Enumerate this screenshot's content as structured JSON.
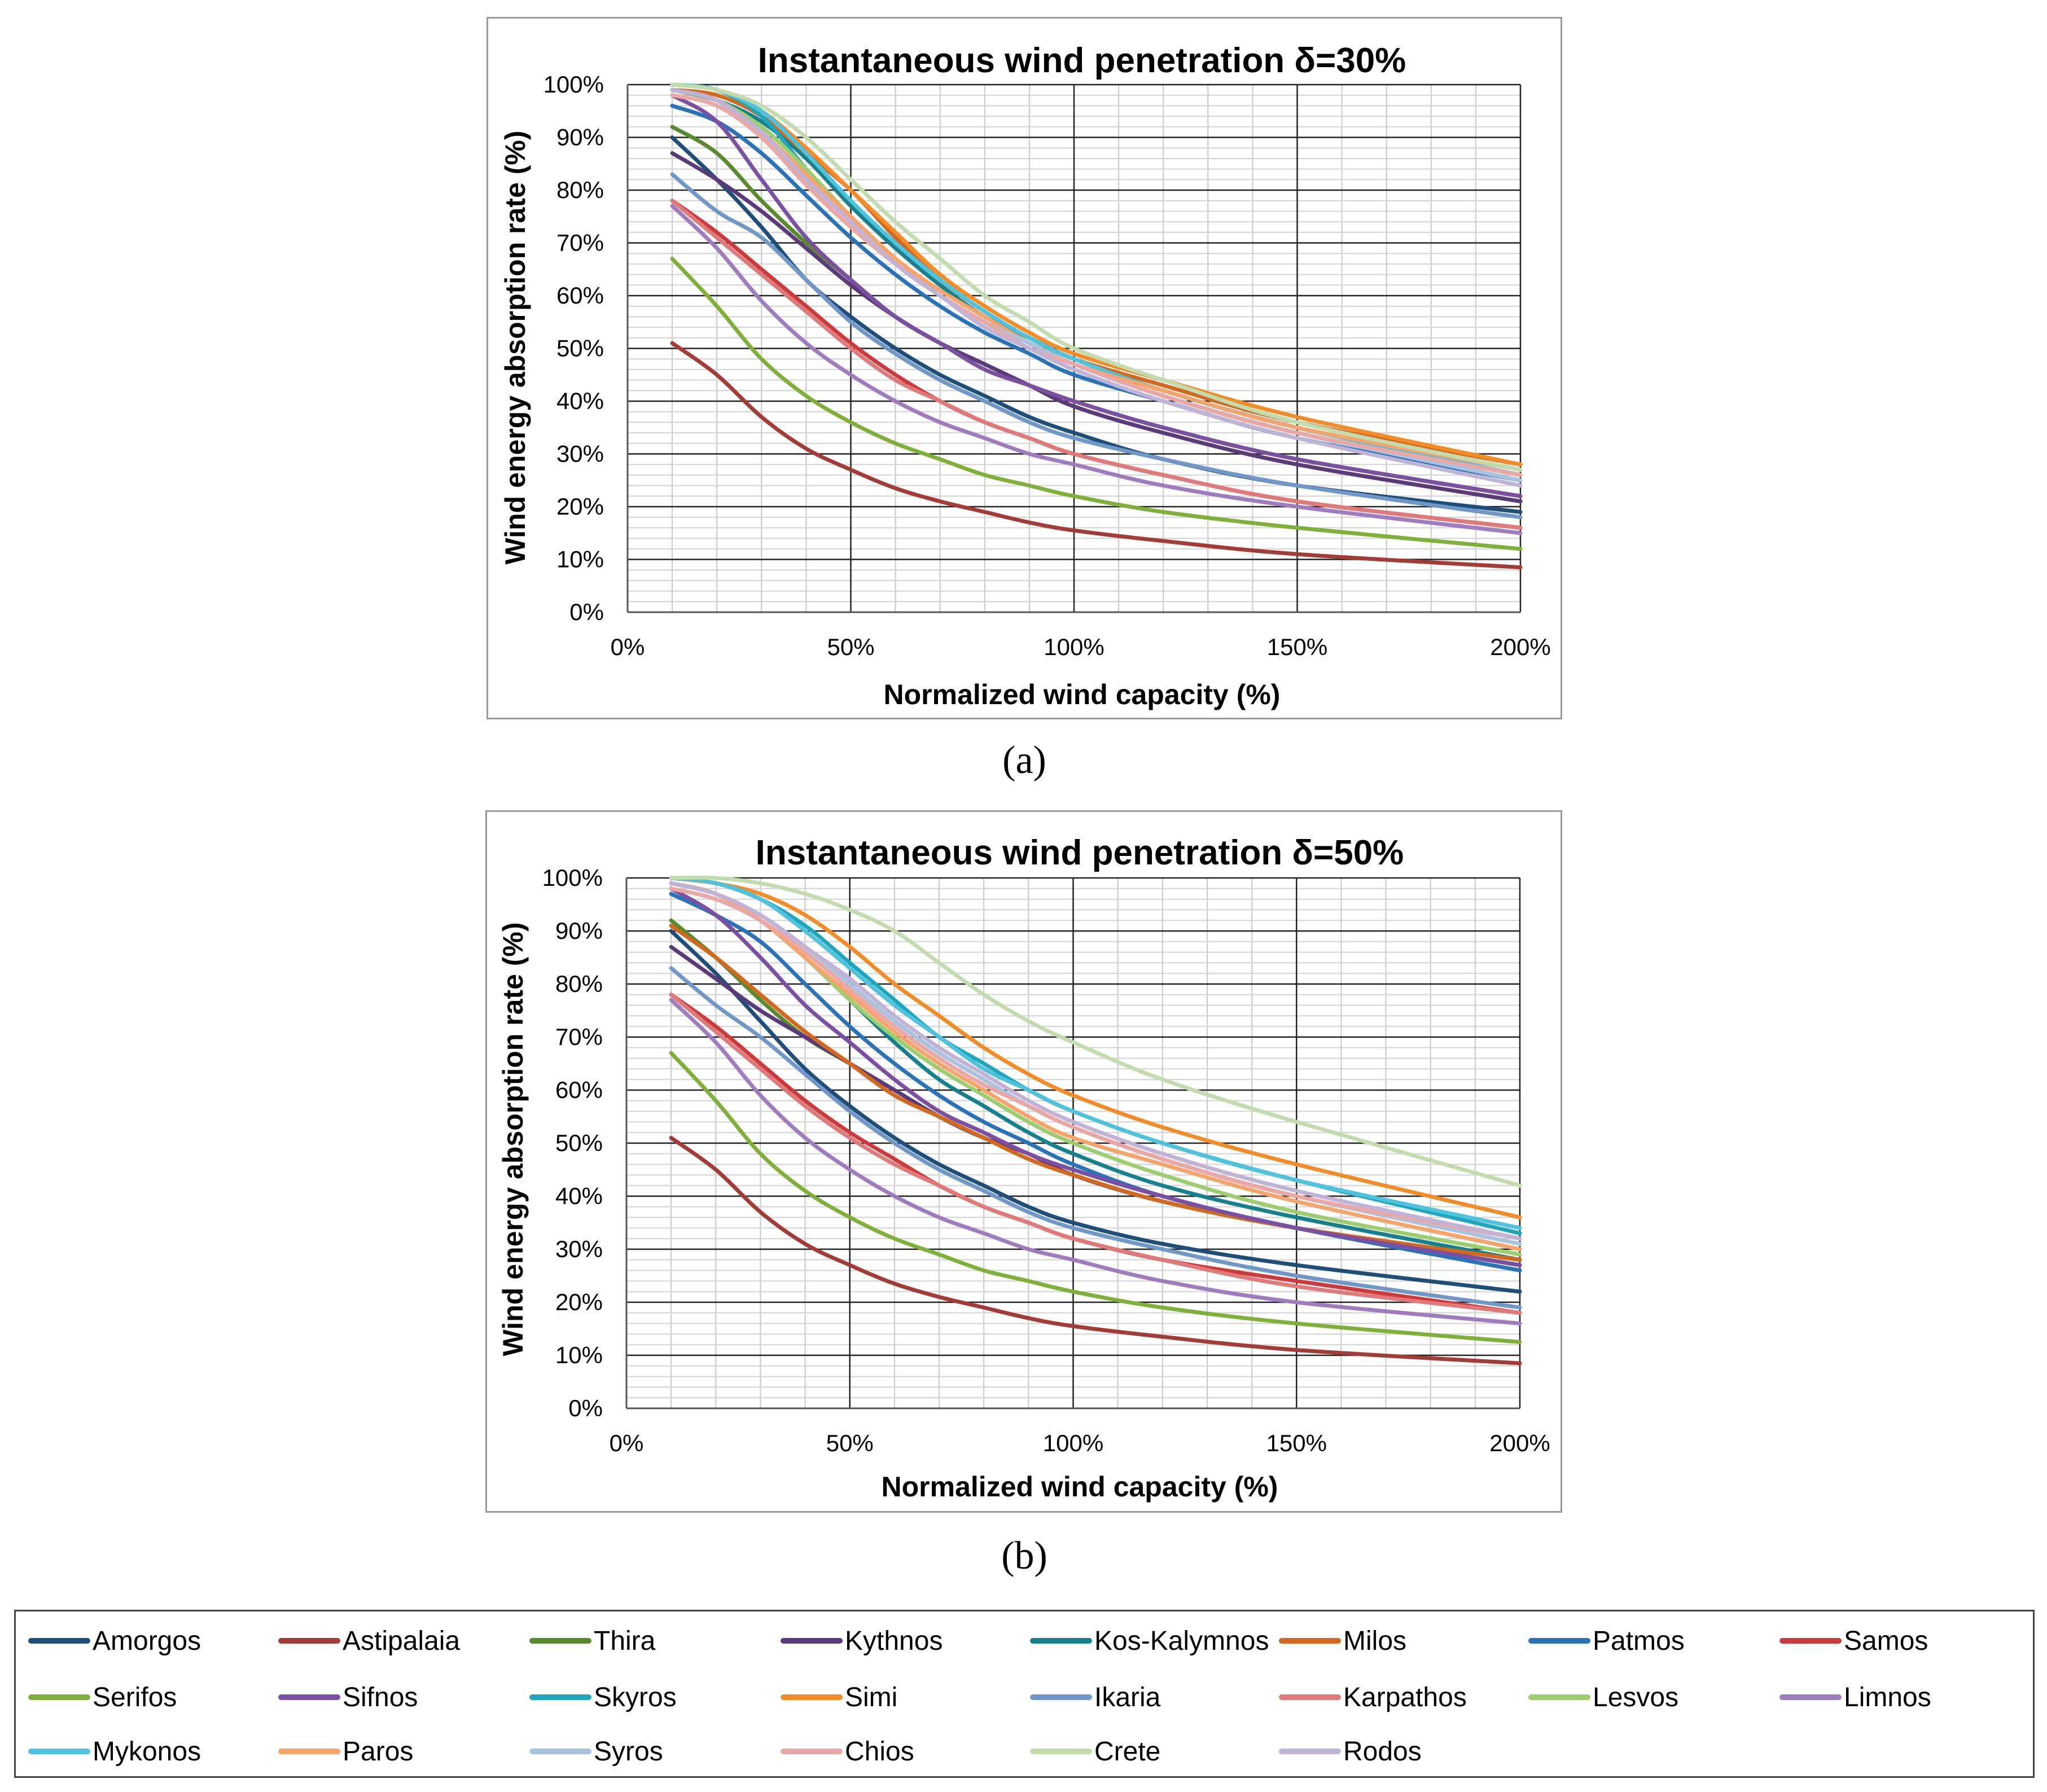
{
  "captions": {
    "a": "(a)",
    "b": "(b)"
  },
  "chart_data": [
    {
      "type": "line",
      "panel": "a",
      "title": "Instantaneous wind penetration δ=30%",
      "xlabel": "Normalized wind capacity (%)",
      "ylabel": "Wind energy absorption rate (%)",
      "xlim": [
        0,
        200
      ],
      "ylim": [
        0,
        100
      ],
      "x_ticks": [
        "0%",
        "50%",
        "100%",
        "150%",
        "200%"
      ],
      "y_ticks": [
        "0%",
        "10%",
        "20%",
        "30%",
        "40%",
        "50%",
        "60%",
        "70%",
        "80%",
        "90%",
        "100%"
      ],
      "x": [
        10,
        20,
        30,
        40,
        50,
        60,
        70,
        80,
        90,
        100,
        120,
        150,
        200
      ],
      "series": [
        {
          "name": "Amorgos",
          "color": "#1f4e79",
          "values": [
            90,
            82,
            73,
            63,
            56,
            50,
            45,
            41,
            37,
            34,
            29,
            24,
            19
          ]
        },
        {
          "name": "Astipalaia",
          "color": "#a33b37",
          "values": [
            51,
            45,
            37,
            31,
            27,
            23.5,
            21,
            19,
            17,
            15.5,
            13.5,
            11,
            8.5
          ]
        },
        {
          "name": "Thira",
          "color": "#5a8a2e",
          "values": [
            92,
            87,
            78,
            70,
            63,
            56,
            51,
            47,
            43,
            40,
            35,
            29,
            22
          ]
        },
        {
          "name": "Kythnos",
          "color": "#5b3a7a",
          "values": [
            87,
            82,
            76,
            69,
            62,
            56,
            51,
            47,
            43,
            39,
            34,
            28,
            21
          ]
        },
        {
          "name": "Kos-Kalymnos",
          "color": "#16808c",
          "values": [
            99,
            97,
            93,
            86,
            77,
            69,
            62,
            56,
            52,
            48,
            42,
            35,
            26
          ]
        },
        {
          "name": "Milos",
          "color": "#d2691e",
          "values": [
            99,
            98,
            94,
            87,
            80,
            71,
            63,
            57,
            52,
            48,
            43,
            36,
            28
          ]
        },
        {
          "name": "Patmos",
          "color": "#2a73b8",
          "values": [
            96,
            93,
            87,
            79,
            71,
            64,
            58,
            53,
            49,
            45,
            40,
            33,
            25
          ]
        },
        {
          "name": "Samos",
          "color": "#cc3b3b",
          "values": [
            78,
            72,
            65,
            58,
            51,
            45,
            40,
            36,
            33,
            30,
            26,
            21,
            16
          ]
        },
        {
          "name": "Serifos",
          "color": "#7fb03a",
          "values": [
            67,
            58,
            48,
            41,
            36,
            32,
            29,
            26,
            24,
            22,
            19,
            16,
            12
          ]
        },
        {
          "name": "Sifnos",
          "color": "#7b4fa2",
          "values": [
            98,
            93,
            82,
            71,
            63,
            56,
            51,
            46,
            43,
            40,
            35,
            29,
            22
          ]
        },
        {
          "name": "Skyros",
          "color": "#1fa6bd",
          "values": [
            100,
            99,
            94,
            84,
            75,
            67,
            60,
            55,
            51,
            47,
            41,
            34,
            25
          ]
        },
        {
          "name": "Simi",
          "color": "#f28c28",
          "values": [
            100,
            99,
            95,
            88,
            80,
            72,
            64,
            58,
            53,
            49,
            44,
            37,
            28
          ]
        },
        {
          "name": "Ikaria",
          "color": "#6f97c8",
          "values": [
            83,
            76,
            71,
            63,
            55,
            49,
            44,
            40,
            36,
            33,
            29,
            24,
            18
          ]
        },
        {
          "name": "Karpathos",
          "color": "#e07a7a",
          "values": [
            78,
            71,
            64,
            57,
            50,
            44,
            40,
            36,
            33,
            30,
            26,
            21,
            16
          ]
        },
        {
          "name": "Lesvos",
          "color": "#9ccd6e",
          "values": [
            99,
            97,
            92,
            84,
            75,
            67,
            60,
            55,
            50,
            47,
            41,
            34,
            26
          ]
        },
        {
          "name": "Limnos",
          "color": "#a07cbf",
          "values": [
            77,
            69,
            59,
            51,
            45,
            40,
            36,
            33,
            30,
            28,
            24,
            20,
            15
          ]
        },
        {
          "name": "Mykonos",
          "color": "#4fc3dd",
          "values": [
            100,
            99,
            95,
            87,
            78,
            70,
            63,
            57,
            52,
            48,
            42,
            35,
            26
          ]
        },
        {
          "name": "Paros",
          "color": "#f5a46b",
          "values": [
            99,
            97,
            91,
            83,
            75,
            67,
            61,
            56,
            51,
            47,
            42,
            35,
            27
          ]
        },
        {
          "name": "Syros",
          "color": "#a9c2e0",
          "values": [
            99,
            97,
            90,
            82,
            74,
            66,
            60,
            55,
            51,
            47,
            41,
            34,
            25
          ]
        },
        {
          "name": "Chios",
          "color": "#eaa7a3",
          "values": [
            98,
            96,
            90,
            81,
            73,
            66,
            60,
            55,
            50,
            47,
            41,
            34,
            26
          ]
        },
        {
          "name": "Crete",
          "color": "#c2dcae",
          "values": [
            100,
            99,
            96,
            90,
            82,
            74,
            67,
            60,
            55,
            50,
            44,
            36,
            27
          ]
        },
        {
          "name": "Rodos",
          "color": "#c1b3d6",
          "values": [
            99,
            97,
            91,
            82,
            74,
            66,
            60,
            54,
            50,
            46,
            40,
            33,
            24
          ]
        }
      ]
    },
    {
      "type": "line",
      "panel": "b",
      "title": "Instantaneous wind penetration δ=50%",
      "xlabel": "Normalized wind capacity (%)",
      "ylabel": "Wind energy absorption rate (%)",
      "xlim": [
        0,
        200
      ],
      "ylim": [
        0,
        100
      ],
      "x_ticks": [
        "0%",
        "50%",
        "100%",
        "150%",
        "200%"
      ],
      "y_ticks": [
        "0%",
        "10%",
        "20%",
        "30%",
        "40%",
        "50%",
        "60%",
        "70%",
        "80%",
        "90%",
        "100%"
      ],
      "x": [
        10,
        20,
        30,
        40,
        50,
        60,
        70,
        80,
        90,
        100,
        120,
        150,
        200
      ],
      "series": [
        {
          "name": "Amorgos",
          "color": "#1f4e79",
          "values": [
            90,
            82,
            73,
            64,
            57,
            51,
            46,
            42,
            38,
            35,
            31,
            27,
            22
          ]
        },
        {
          "name": "Astipalaia",
          "color": "#a33b37",
          "values": [
            51,
            45,
            37,
            31,
            27,
            23.5,
            21,
            19,
            17,
            15.5,
            13.5,
            11,
            8.5
          ]
        },
        {
          "name": "Thira",
          "color": "#5a8a2e",
          "values": [
            92,
            85,
            77,
            70,
            65,
            60,
            55,
            51,
            48,
            44,
            39,
            34,
            27
          ]
        },
        {
          "name": "Kythnos",
          "color": "#5b3a7a",
          "values": [
            87,
            81,
            75,
            70,
            65,
            60,
            55,
            51,
            48,
            44,
            39,
            34,
            27
          ]
        },
        {
          "name": "Kos-Kalymnos",
          "color": "#16808c",
          "values": [
            99,
            97,
            92,
            85,
            77,
            69,
            62,
            57,
            52,
            48,
            42,
            36,
            28
          ]
        },
        {
          "name": "Milos",
          "color": "#d2691e",
          "values": [
            91,
            85,
            78,
            71,
            65,
            59,
            55,
            51,
            47,
            44,
            39,
            34,
            28
          ]
        },
        {
          "name": "Patmos",
          "color": "#2a73b8",
          "values": [
            97,
            93,
            88,
            80,
            72,
            65,
            59,
            54,
            50,
            46,
            40,
            34,
            26
          ]
        },
        {
          "name": "Samos",
          "color": "#cc3b3b",
          "values": [
            78,
            72,
            65,
            58,
            52,
            47,
            42,
            38,
            35,
            32,
            28,
            24,
            18
          ]
        },
        {
          "name": "Serifos",
          "color": "#7fb03a",
          "values": [
            67,
            58,
            48,
            41,
            36,
            32,
            29,
            26,
            24,
            22,
            19,
            16,
            12.5
          ]
        },
        {
          "name": "Sifnos",
          "color": "#7b4fa2",
          "values": [
            98,
            93,
            85,
            76,
            69,
            62,
            56,
            52,
            48,
            45,
            40,
            34,
            27
          ]
        },
        {
          "name": "Skyros",
          "color": "#1fa6bd",
          "values": [
            100,
            99,
            96,
            91,
            84,
            77,
            70,
            65,
            60,
            56,
            50,
            43,
            33
          ]
        },
        {
          "name": "Simi",
          "color": "#f28c28",
          "values": [
            100,
            99,
            97,
            93,
            87,
            80,
            74,
            68,
            63,
            59,
            53,
            46,
            36
          ]
        },
        {
          "name": "Ikaria",
          "color": "#6f97c8",
          "values": [
            83,
            76,
            70,
            63,
            56,
            50,
            45,
            41,
            37,
            34,
            30,
            25,
            19
          ]
        },
        {
          "name": "Karpathos",
          "color": "#e07a7a",
          "values": [
            78,
            71,
            64,
            57,
            51,
            46,
            42,
            38,
            35,
            32,
            28,
            23,
            18
          ]
        },
        {
          "name": "Lesvos",
          "color": "#9ccd6e",
          "values": [
            99,
            97,
            92,
            85,
            77,
            70,
            64,
            59,
            54,
            50,
            44,
            37,
            29
          ]
        },
        {
          "name": "Limnos",
          "color": "#a07cbf",
          "values": [
            77,
            69,
            59,
            51,
            45,
            40,
            36,
            33,
            30,
            28,
            24,
            20,
            16
          ]
        },
        {
          "name": "Mykonos",
          "color": "#4fc3dd",
          "values": [
            100,
            99,
            96,
            90,
            83,
            76,
            70,
            64,
            60,
            56,
            50,
            43,
            34
          ]
        },
        {
          "name": "Paros",
          "color": "#f5a46b",
          "values": [
            99,
            97,
            92,
            85,
            78,
            71,
            65,
            60,
            55,
            51,
            46,
            39,
            30
          ]
        },
        {
          "name": "Syros",
          "color": "#a9c2e0",
          "values": [
            99,
            97,
            93,
            87,
            80,
            73,
            67,
            62,
            57,
            53,
            47,
            40,
            31
          ]
        },
        {
          "name": "Chios",
          "color": "#eaa7a3",
          "values": [
            98,
            96,
            92,
            86,
            79,
            72,
            66,
            61,
            57,
            53,
            47,
            40,
            32
          ]
        },
        {
          "name": "Crete",
          "color": "#c2dcae",
          "values": [
            100,
            100,
            99,
            97,
            94,
            90,
            84,
            78,
            73,
            69,
            62,
            54,
            42
          ]
        },
        {
          "name": "Rodos",
          "color": "#c1b3d6",
          "values": [
            99,
            97,
            93,
            87,
            81,
            74,
            68,
            63,
            58,
            54,
            48,
            41,
            32
          ]
        }
      ]
    }
  ],
  "legend": {
    "items": [
      {
        "label": "Amorgos",
        "color": "#1f4e79"
      },
      {
        "label": "Astipalaia",
        "color": "#a33b37"
      },
      {
        "label": "Thira",
        "color": "#5a8a2e"
      },
      {
        "label": "Kythnos",
        "color": "#5b3a7a"
      },
      {
        "label": "Kos-Kalymnos",
        "color": "#16808c"
      },
      {
        "label": "Milos",
        "color": "#d2691e"
      },
      {
        "label": "Patmos",
        "color": "#2a73b8"
      },
      {
        "label": "Samos",
        "color": "#cc3b3b"
      },
      {
        "label": "Serifos",
        "color": "#7fb03a"
      },
      {
        "label": "Sifnos",
        "color": "#7b4fa2"
      },
      {
        "label": "Skyros",
        "color": "#1fa6bd"
      },
      {
        "label": "Simi",
        "color": "#f28c28"
      },
      {
        "label": "Ikaria",
        "color": "#6f97c8"
      },
      {
        "label": "Karpathos",
        "color": "#e07a7a"
      },
      {
        "label": "Lesvos",
        "color": "#9ccd6e"
      },
      {
        "label": "Limnos",
        "color": "#a07cbf"
      },
      {
        "label": "Mykonos",
        "color": "#4fc3dd"
      },
      {
        "label": "Paros",
        "color": "#f5a46b"
      },
      {
        "label": "Syros",
        "color": "#a9c2e0"
      },
      {
        "label": "Chios",
        "color": "#eaa7a3"
      },
      {
        "label": "Crete",
        "color": "#c2dcae"
      },
      {
        "label": "Rodos",
        "color": "#c1b3d6"
      }
    ]
  }
}
